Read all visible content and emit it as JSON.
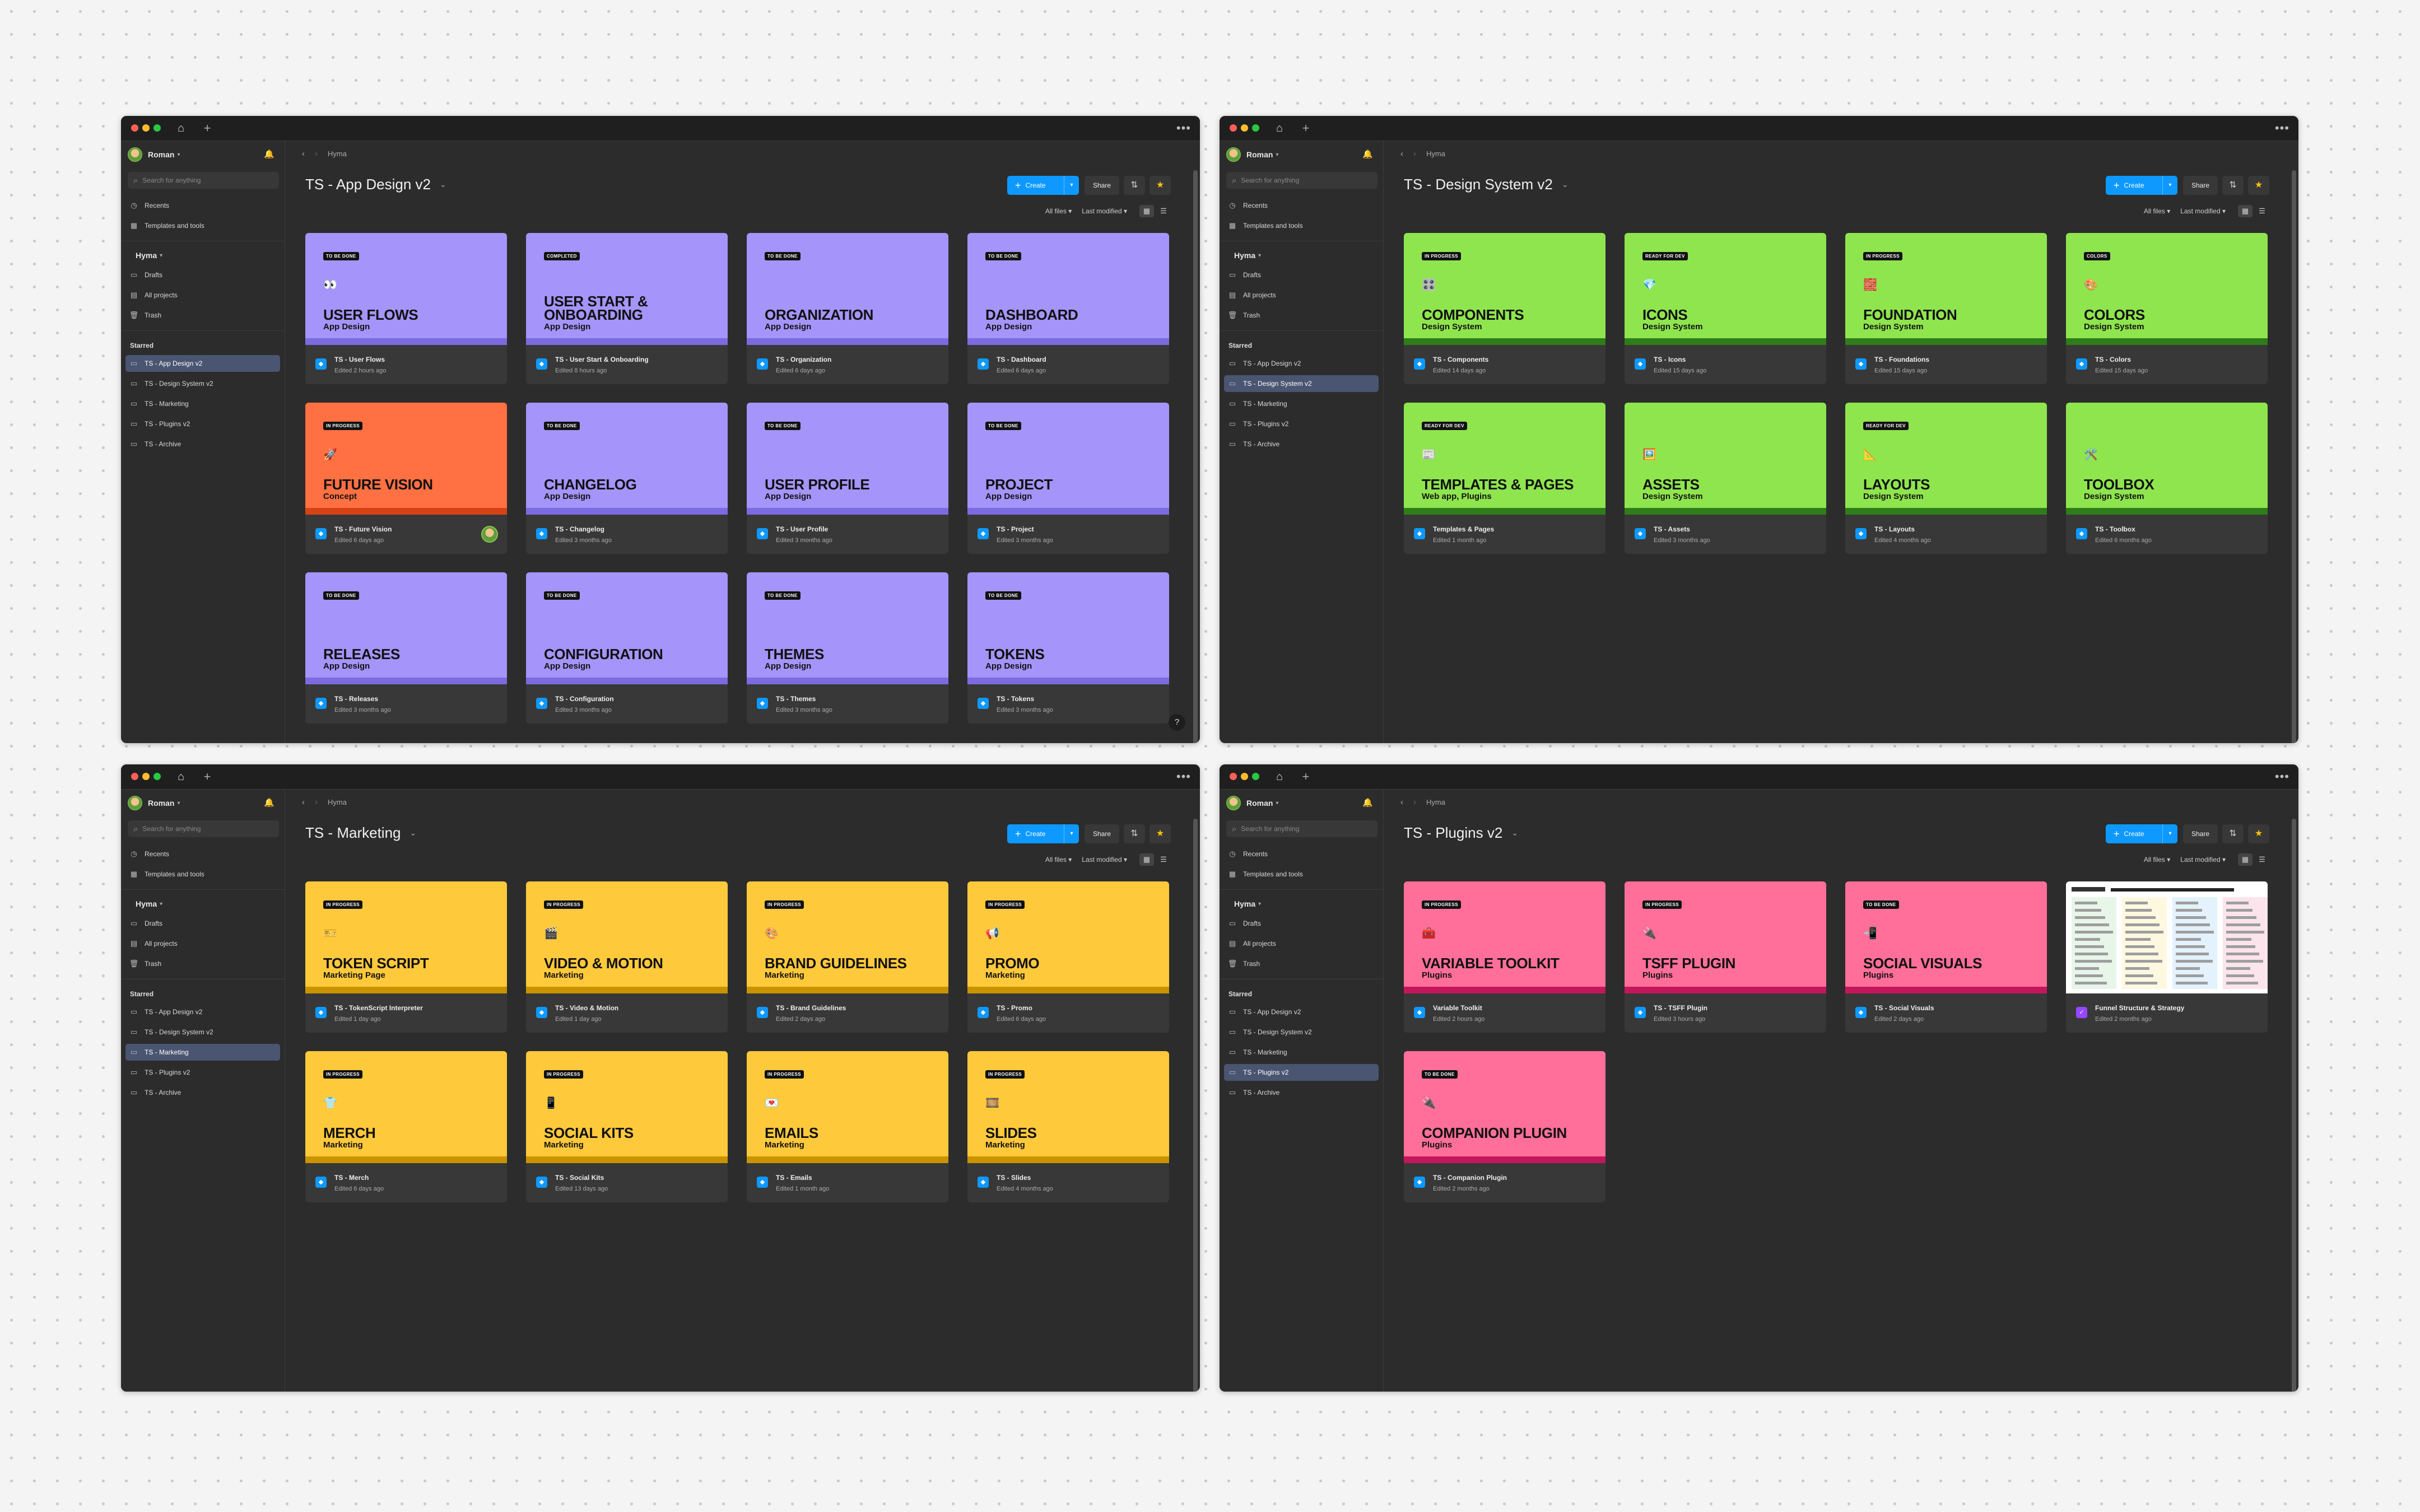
{
  "windows": [
    {
      "id": "app-design",
      "user": "Roman",
      "search_placeholder": "Search for anything",
      "nav": {
        "recents": "Recents",
        "templates": "Templates and tools",
        "team": "Hyma",
        "drafts": "Drafts",
        "all_projects": "All projects",
        "trash": "Trash",
        "starred": "Starred"
      },
      "starred": [
        "TS - App Design v2",
        "TS - Design System v2",
        "TS - Marketing",
        "TS - Plugins v2",
        "TS - Archive"
      ],
      "active_starred": 0,
      "breadcrumb": "Hyma",
      "title": "TS - App Design v2",
      "toolbar": {
        "create": "Create",
        "share": "Share"
      },
      "filters": {
        "files": "All files",
        "sort": "Last modified"
      },
      "color": "#a594f9",
      "band": "#7c6ae0",
      "cards": [
        {
          "badge": "TO BE DONE",
          "emoji": "👀",
          "title": "USER FLOWS",
          "subtitle": "App Design",
          "name": "TS - User Flows",
          "edited": "Edited 2 hours ago"
        },
        {
          "badge": "COMPLETED",
          "emoji": "",
          "title": "USER START & ONBOARDING",
          "subtitle": "App Design",
          "name": "TS - User Start & Onboarding",
          "edited": "Edited 8 hours ago"
        },
        {
          "badge": "TO BE DONE",
          "emoji": "",
          "title": "ORGANIZATION",
          "subtitle": "App Design",
          "name": "TS - Organization",
          "edited": "Edited 6 days ago"
        },
        {
          "badge": "TO BE DONE",
          "emoji": "",
          "title": "DASHBOARD",
          "subtitle": "App Design",
          "name": "TS - Dashboard",
          "edited": "Edited 6 days ago"
        },
        {
          "badge": "IN PROGRESS",
          "emoji": "🚀",
          "title": "FUTURE VISION",
          "subtitle": "Concept",
          "name": "TS - Future Vision",
          "edited": "Edited 6 days ago",
          "color": "#ff7043",
          "band": "#d84315",
          "face": true
        },
        {
          "badge": "TO BE DONE",
          "emoji": "",
          "title": "CHANGELOG",
          "subtitle": "App Design",
          "name": "TS - Changelog",
          "edited": "Edited 3 months ago"
        },
        {
          "badge": "TO BE DONE",
          "emoji": "",
          "title": "USER PROFILE",
          "subtitle": "App Design",
          "name": "TS - User Profile",
          "edited": "Edited 3 months ago"
        },
        {
          "badge": "TO BE DONE",
          "emoji": "",
          "title": "PROJECT",
          "subtitle": "App Design",
          "name": "TS - Project",
          "edited": "Edited 3 months ago"
        },
        {
          "badge": "TO BE DONE",
          "emoji": "",
          "title": "RELEASES",
          "subtitle": "App Design",
          "name": "TS - Releases",
          "edited": "Edited 3 months ago"
        },
        {
          "badge": "TO BE DONE",
          "emoji": "",
          "title": "CONFIGURATION",
          "subtitle": "App Design",
          "name": "TS - Configuration",
          "edited": "Edited 3 months ago"
        },
        {
          "badge": "TO BE DONE",
          "emoji": "",
          "title": "THEMES",
          "subtitle": "App Design",
          "name": "TS - Themes",
          "edited": "Edited 3 months ago"
        },
        {
          "badge": "TO BE DONE",
          "emoji": "",
          "title": "TOKENS",
          "subtitle": "App Design",
          "name": "TS - Tokens",
          "edited": "Edited 3 months ago"
        }
      ],
      "help": "?"
    },
    {
      "id": "design-system",
      "user": "Roman",
      "search_placeholder": "Search for anything",
      "nav": {
        "recents": "Recents",
        "templates": "Templates and tools",
        "team": "Hyma",
        "drafts": "Drafts",
        "all_projects": "All projects",
        "trash": "Trash",
        "starred": "Starred"
      },
      "starred": [
        "TS - App Design v2",
        "TS - Design System v2",
        "TS - Marketing",
        "TS - Plugins v2",
        "TS - Archive"
      ],
      "active_starred": 1,
      "breadcrumb": "Hyma",
      "title": "TS - Design System v2",
      "toolbar": {
        "create": "Create",
        "share": "Share"
      },
      "filters": {
        "files": "All files",
        "sort": "Last modified"
      },
      "color": "#8fe54e",
      "band": "#2e7d1a",
      "cards": [
        {
          "badge": "IN PROGRESS",
          "emoji": "🎛️",
          "title": "COMPONENTS",
          "subtitle": "Design System",
          "name": "TS - Components",
          "edited": "Edited 14 days ago"
        },
        {
          "badge": "READY FOR DEV",
          "emoji": "💎",
          "title": "ICONS",
          "subtitle": "Design System",
          "name": "TS - Icons",
          "edited": "Edited 15 days ago"
        },
        {
          "badge": "IN PROGRESS",
          "emoji": "🧱",
          "title": "FOUNDATION",
          "subtitle": "Design System",
          "name": "TS - Foundations",
          "edited": "Edited 15 days ago"
        },
        {
          "badge": "COLORS",
          "emoji": "🎨",
          "title": "COLORS",
          "subtitle": "Design System",
          "name": "TS - Colors",
          "edited": "Edited 15 days ago"
        },
        {
          "badge": "READY FOR DEV",
          "emoji": "📰",
          "title": "TEMPLATES & PAGES",
          "subtitle": "Web app, Plugins",
          "name": "Templates & Pages",
          "edited": "Edited 1 month ago"
        },
        {
          "badge": "",
          "emoji": "🖼️",
          "title": "ASSETS",
          "subtitle": "Design System",
          "name": "TS - Assets",
          "edited": "Edited 3 months ago"
        },
        {
          "badge": "READY FOR DEV",
          "emoji": "📐",
          "title": "LAYOUTS",
          "subtitle": "Design System",
          "name": "TS - Layouts",
          "edited": "Edited 4 months ago"
        },
        {
          "badge": "",
          "emoji": "🛠️",
          "title": "TOOLBOX",
          "subtitle": "Design System",
          "name": "TS - Toolbox",
          "edited": "Edited 6 months ago"
        }
      ]
    },
    {
      "id": "marketing",
      "user": "Roman",
      "search_placeholder": "Search for anything",
      "nav": {
        "recents": "Recents",
        "templates": "Templates and tools",
        "team": "Hyma",
        "drafts": "Drafts",
        "all_projects": "All projects",
        "trash": "Trash",
        "starred": "Starred"
      },
      "starred": [
        "TS - App Design v2",
        "TS - Design System v2",
        "TS - Marketing",
        "TS - Plugins v2",
        "TS - Archive"
      ],
      "active_starred": 2,
      "breadcrumb": "Hyma",
      "title": "TS - Marketing",
      "toolbar": {
        "create": "Create",
        "share": "Share"
      },
      "filters": {
        "files": "All files",
        "sort": "Last modified"
      },
      "color": "#ffc93c",
      "band": "#c99400",
      "cards": [
        {
          "badge": "IN PROGRESS",
          "emoji": "🎫",
          "title": "TOKEN SCRIPT",
          "subtitle": "Marketing Page",
          "name": "TS - TokenScript Interpreter",
          "edited": "Edited 1 day ago"
        },
        {
          "badge": "IN PROGRESS",
          "emoji": "🎬",
          "title": "VIDEO & MOTION",
          "subtitle": "Marketing",
          "name": "TS - Video & Motion",
          "edited": "Edited 1 day ago"
        },
        {
          "badge": "IN PROGRESS",
          "emoji": "🎨",
          "title": "BRAND GUIDELINES",
          "subtitle": "Marketing",
          "name": "TS - Brand Guidelines",
          "edited": "Edited 2 days ago"
        },
        {
          "badge": "IN PROGRESS",
          "emoji": "📢",
          "title": "PROMO",
          "subtitle": "Marketing",
          "name": "TS - Promo",
          "edited": "Edited 6 days ago"
        },
        {
          "badge": "IN PROGRESS",
          "emoji": "👕",
          "title": "MERCH",
          "subtitle": "Marketing",
          "name": "TS - Merch",
          "edited": "Edited 6 days ago"
        },
        {
          "badge": "IN PROGRESS",
          "emoji": "📱",
          "title": "SOCIAL KITS",
          "subtitle": "Marketing",
          "name": "TS - Social Kits",
          "edited": "Edited 13 days ago"
        },
        {
          "badge": "IN PROGRESS",
          "emoji": "💌",
          "title": "EMAILS",
          "subtitle": "Marketing",
          "name": "TS - Emails",
          "edited": "Edited 1 month ago"
        },
        {
          "badge": "IN PROGRESS",
          "emoji": "🎞️",
          "title": "SLIDES",
          "subtitle": "Marketing",
          "name": "TS - Slides",
          "edited": "Edited 4 months ago"
        }
      ]
    },
    {
      "id": "plugins",
      "user": "Roman",
      "search_placeholder": "Search for anything",
      "nav": {
        "recents": "Recents",
        "templates": "Templates and tools",
        "team": "Hyma",
        "drafts": "Drafts",
        "all_projects": "All projects",
        "trash": "Trash",
        "starred": "Starred"
      },
      "starred": [
        "TS - App Design v2",
        "TS - Design System v2",
        "TS - Marketing",
        "TS - Plugins v2",
        "TS - Archive"
      ],
      "active_starred": 3,
      "breadcrumb": "Hyma",
      "title": "TS - Plugins v2",
      "toolbar": {
        "create": "Create",
        "share": "Share"
      },
      "filters": {
        "files": "All files",
        "sort": "Last modified"
      },
      "color": "#ff6f9a",
      "band": "#c2185b",
      "cards": [
        {
          "badge": "IN PROGRESS",
          "emoji": "🧰",
          "title": "VARIABLE TOOLKIT",
          "subtitle": "Plugins",
          "name": "Variable Toolkit",
          "edited": "Edited 2 hours ago"
        },
        {
          "badge": "IN PROGRESS",
          "emoji": "🔌",
          "title": "TSFF PLUGIN",
          "subtitle": "Plugins",
          "name": "TS - TSFF Plugin",
          "edited": "Edited 3 hours ago"
        },
        {
          "badge": "TO BE DONE",
          "emoji": "📲",
          "title": "SOCIAL VISUALS",
          "subtitle": "Plugins",
          "name": "TS - Social Visuals",
          "edited": "Edited 2 days ago"
        },
        {
          "badge": "",
          "emoji": "",
          "title": "",
          "subtitle": "",
          "name": "Funnel Structure & Strategy",
          "edited": "Edited 2 months ago",
          "sheet": true
        },
        {
          "badge": "TO BE DONE",
          "emoji": "🔌",
          "title": "COMPANION PLUGIN",
          "subtitle": "Plugins",
          "name": "TS - Companion Plugin",
          "edited": "Edited 2 months ago"
        }
      ]
    }
  ]
}
